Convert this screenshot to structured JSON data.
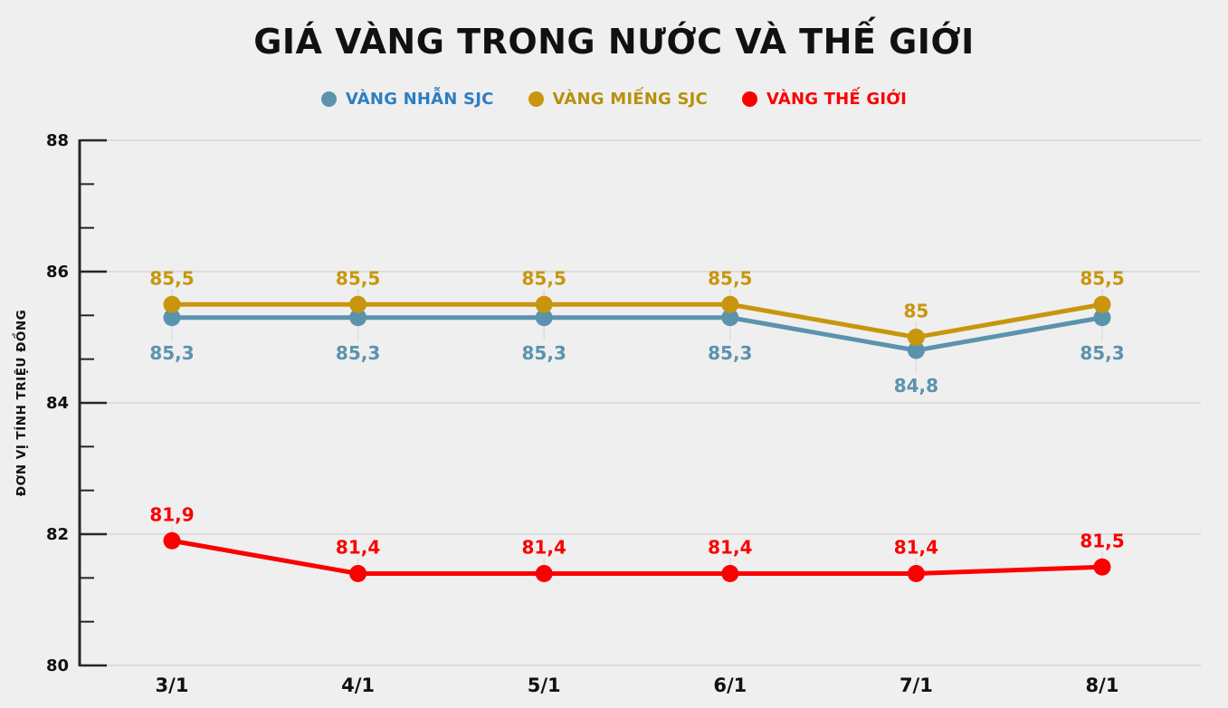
{
  "title": "GIÁ VÀNG TRONG NƯỚC VÀ THẾ GIỚI",
  "y_axis_title": "ĐƠN VỊ TÍNH TRIỆU ĐỒNG",
  "colors": {
    "background": "#efefef",
    "axis": "#262626",
    "gridline": "#d6d6d6",
    "leader_line": "#dedede",
    "text": "#111111"
  },
  "chart_data": {
    "type": "line",
    "categories": [
      "3/1",
      "4/1",
      "5/1",
      "6/1",
      "7/1",
      "8/1"
    ],
    "series": [
      {
        "name": "VÀNG NHẪN SJC",
        "color": "#5B93AE",
        "legend_text_color": "#2D7EC2",
        "values": [
          85.3,
          85.3,
          85.3,
          85.3,
          84.8,
          85.3
        ],
        "labels": [
          "85,3",
          "85,3",
          "85,3",
          "85,3",
          "84,8",
          "85,3"
        ],
        "label_position": "below"
      },
      {
        "name": "VÀNG MIẾNG SJC",
        "color": "#C8960C",
        "legend_text_color": "#B8900E",
        "values": [
          85.5,
          85.5,
          85.5,
          85.5,
          85.0,
          85.5
        ],
        "labels": [
          "85,5",
          "85,5",
          "85,5",
          "85,5",
          "85",
          "85,5"
        ],
        "label_position": "above"
      },
      {
        "name": "VÀNG THẾ GIỚI",
        "color": "#FB0000",
        "legend_text_color": "#FB0000",
        "values": [
          81.9,
          81.4,
          81.4,
          81.4,
          81.4,
          81.5
        ],
        "labels": [
          "81,9",
          "81,4",
          "81,4",
          "81,4",
          "81,4",
          "81,5"
        ],
        "label_position": "above"
      }
    ],
    "ylim": [
      80,
      88
    ],
    "y_ticks": [
      80,
      82,
      84,
      86,
      88
    ],
    "minor_ticks_per_major_interval": 2,
    "grid": "horizontal-major",
    "legend_position": "top"
  }
}
